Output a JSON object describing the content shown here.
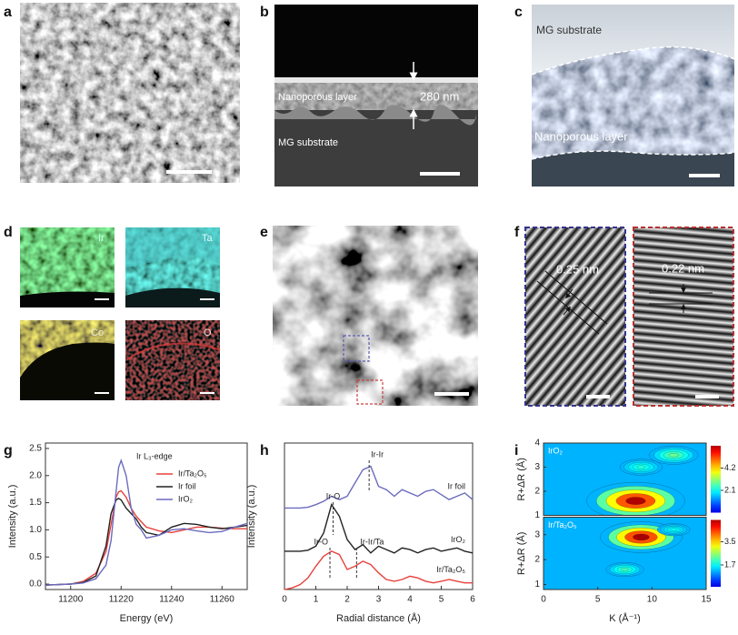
{
  "panel_labels": [
    "a",
    "b",
    "c",
    "d",
    "e",
    "f",
    "g",
    "h",
    "i"
  ],
  "panel_b": {
    "layer_label": "Nanoporous layer",
    "thickness": "280 nm",
    "substrate_label": "MG substrate"
  },
  "panel_c": {
    "substrate_label": "MG substrate",
    "layer_label": "Nanoporous layer"
  },
  "panel_d": {
    "elements": [
      "Ir",
      "Ta",
      "Co",
      "O"
    ]
  },
  "panel_f": {
    "spacings": [
      "0.25 nm",
      "0.22 nm"
    ]
  },
  "chart_data": [
    {
      "type": "line",
      "annotation": "Ir L₃-edge",
      "xlabel": "Energy (eV)",
      "ylabel": "Intensity (a.u.)",
      "xlim": [
        11190,
        11270
      ],
      "xticks": [
        11200,
        11220,
        11240,
        11260
      ],
      "ylim": [
        -0.1,
        2.6
      ],
      "yticks": [
        {
          "value": 0,
          "label": "0.0"
        },
        0.5,
        {
          "value": 1,
          "label": "1.0"
        },
        1.5,
        {
          "value": 2,
          "label": "2.0"
        },
        2.5
      ],
      "legend": "upper right",
      "x": [
        11190,
        11195,
        11200,
        11205,
        11210,
        11214,
        11216,
        11218,
        11219,
        11220,
        11222,
        11224,
        11226,
        11228,
        11230,
        11235,
        11240,
        11245,
        11250,
        11255,
        11260,
        11265,
        11270
      ],
      "series": [
        {
          "name": "Ir/Ta₂O₅",
          "color": "#e8413c",
          "values": [
            -0.02,
            -0.01,
            0.0,
            0.05,
            0.2,
            0.6,
            1.1,
            1.6,
            1.7,
            1.72,
            1.6,
            1.4,
            1.25,
            1.15,
            1.05,
            0.98,
            0.95,
            1.0,
            1.05,
            1.05,
            1.03,
            1.02,
            1.02
          ]
        },
        {
          "name": "Ir foil",
          "color": "#222222",
          "values": [
            -0.02,
            -0.01,
            0.0,
            0.03,
            0.15,
            0.7,
            1.3,
            1.55,
            1.58,
            1.55,
            1.4,
            1.3,
            1.2,
            1.05,
            0.95,
            0.9,
            1.05,
            1.12,
            1.1,
            1.05,
            1.02,
            1.05,
            1.08
          ]
        },
        {
          "name": "IrO₂",
          "color": "#6b6bbf",
          "values": [
            -0.02,
            -0.01,
            0.0,
            0.02,
            0.1,
            0.35,
            0.8,
            1.7,
            2.15,
            2.28,
            2.0,
            1.4,
            1.1,
            1.0,
            0.85,
            0.9,
            1.0,
            1.02,
            0.98,
            0.95,
            0.97,
            1.05,
            1.12
          ]
        }
      ]
    },
    {
      "type": "line",
      "xlabel": "Radial distance (Å)",
      "ylabel": "Intensity (a.u.)",
      "xlim": [
        0,
        6
      ],
      "xticks": [
        0,
        1,
        2,
        3,
        4,
        5,
        6
      ],
      "ylim": [
        0,
        4.4
      ],
      "legend": "inline",
      "annotations": [
        {
          "text": "Ir-Ir",
          "x": 2.7
        },
        {
          "text": "Ir-O",
          "x": 1.55
        },
        {
          "text": "Ir-O",
          "x": 1.45
        },
        {
          "text": "Ir-Ir/Ta",
          "x": 2.3
        }
      ],
      "x": [
        0,
        0.25,
        0.5,
        0.75,
        1,
        1.25,
        1.5,
        1.75,
        2,
        2.25,
        2.5,
        2.75,
        3,
        3.25,
        3.5,
        3.75,
        4,
        4.25,
        4.5,
        4.75,
        5,
        5.25,
        5.5,
        5.75,
        6
      ],
      "series": [
        {
          "name": "Ir foil",
          "color": "#6b6bbf",
          "values": [
            2.45,
            2.45,
            2.45,
            2.47,
            2.55,
            2.65,
            2.8,
            2.7,
            2.8,
            3.2,
            3.6,
            3.7,
            3.1,
            3.0,
            2.8,
            3.0,
            2.9,
            2.8,
            2.95,
            3.0,
            2.85,
            2.7,
            2.8,
            2.9,
            2.7
          ]
        },
        {
          "name": "IrO₂",
          "color": "#222222",
          "values": [
            1.15,
            1.15,
            1.15,
            1.18,
            1.3,
            1.7,
            2.55,
            2.2,
            1.5,
            1.2,
            1.35,
            1.1,
            1.3,
            1.2,
            1.1,
            1.25,
            1.2,
            1.1,
            1.2,
            1.25,
            1.15,
            1.2,
            1.25,
            1.15,
            1.1
          ]
        },
        {
          "name": "Ir/Ta₂O₅",
          "color": "#e8413c",
          "values": [
            0.0,
            0.05,
            0.15,
            0.35,
            0.7,
            1.0,
            1.15,
            1.05,
            0.6,
            0.7,
            0.85,
            0.75,
            0.5,
            0.3,
            0.25,
            0.3,
            0.4,
            0.35,
            0.25,
            0.2,
            0.25,
            0.3,
            0.25,
            0.2,
            0.2
          ]
        }
      ]
    },
    {
      "type": "heatmap",
      "xlabel": "K (Å⁻¹)",
      "ylabel": "R+ΔR (Å)",
      "xlim": [
        0,
        15
      ],
      "xticks": [
        0,
        5,
        10,
        15
      ],
      "subplots": [
        {
          "title": "IrO₂",
          "ylim": [
            1,
            4
          ],
          "yticks": [
            1,
            2,
            3,
            4
          ],
          "colorbar_lim": [
            0,
            6.3
          ],
          "colorbar_ticks": [
            4.2,
            2.1
          ],
          "peaks": [
            {
              "x": 8.5,
              "y": 1.6,
              "value": 6.0
            },
            {
              "x": 12,
              "y": 3.5,
              "value": 3.0
            },
            {
              "x": 9,
              "y": 3.0,
              "value": 2.6
            }
          ]
        },
        {
          "title": "Ir/Ta₂O₅",
          "ylim": [
            0.8,
            3.7
          ],
          "yticks": [
            1,
            2,
            3
          ],
          "colorbar_lim": [
            0,
            5.2
          ],
          "colorbar_ticks": [
            3.5,
            1.7
          ],
          "peaks": [
            {
              "x": 9,
              "y": 2.9,
              "value": 5.0
            },
            {
              "x": 7.5,
              "y": 1.6,
              "value": 2.3
            },
            {
              "x": 12,
              "y": 3.2,
              "value": 2.0
            }
          ]
        }
      ]
    }
  ]
}
